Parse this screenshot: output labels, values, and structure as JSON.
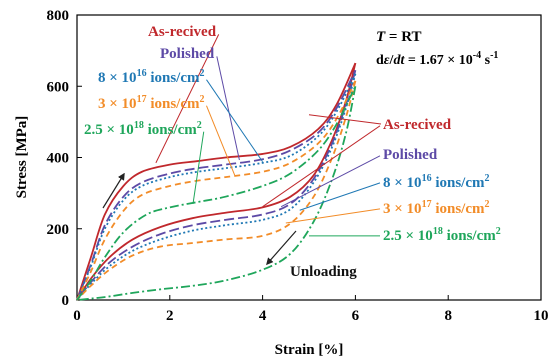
{
  "chart_data": {
    "type": "line",
    "title": "",
    "xlabel": "Strain [%]",
    "ylabel": "Stress [MPa]",
    "xlim": [
      0,
      10
    ],
    "ylim": [
      0,
      800
    ],
    "xticks": [
      "0",
      "2",
      "4",
      "6",
      "8",
      "10"
    ],
    "yticks": [
      "0",
      "200",
      "400",
      "600",
      "800"
    ],
    "grid": false,
    "legend_position": "inline labels with leader lines (left: loading curves, right: unloading curves)",
    "conditions": {
      "temperature_prefix": "T",
      "temperature_value": " = RT",
      "rate_prefix": "d",
      "rate_symbol_e": "ε",
      "rate_slash": "/",
      "rate_symbol_t": "dt",
      "rate_value": " = 1.67 × 10",
      "rate_exp": "-4",
      "rate_unit": " s",
      "rate_unit_exp": "-1"
    },
    "annotations": {
      "unloading": "Unloading"
    },
    "series": [
      {
        "name": "As-recived",
        "color": "#c0282c",
        "dash": "solid",
        "label_parts": [
          "As-recived"
        ],
        "loading": [
          [
            0,
            0
          ],
          [
            0.3,
            120
          ],
          [
            0.6,
            240
          ],
          [
            1.0,
            320
          ],
          [
            1.4,
            360
          ],
          [
            2.0,
            380
          ],
          [
            2.6,
            390
          ],
          [
            3.2,
            400
          ],
          [
            4.0,
            410
          ],
          [
            4.6,
            430
          ],
          [
            5.2,
            480
          ],
          [
            5.6,
            550
          ],
          [
            6.0,
            665
          ]
        ],
        "unloading": [
          [
            6.0,
            665
          ],
          [
            5.8,
            560
          ],
          [
            5.5,
            450
          ],
          [
            5.1,
            350
          ],
          [
            4.6,
            290
          ],
          [
            4.0,
            260
          ],
          [
            3.2,
            245
          ],
          [
            2.5,
            230
          ],
          [
            1.8,
            205
          ],
          [
            1.2,
            170
          ],
          [
            0.7,
            120
          ],
          [
            0.3,
            60
          ],
          [
            0,
            0
          ]
        ]
      },
      {
        "name": "Polished",
        "color": "#5d4aa6",
        "dash": "longdash",
        "label_parts": [
          "Polished"
        ],
        "loading": [
          [
            0,
            0
          ],
          [
            0.3,
            100
          ],
          [
            0.6,
            210
          ],
          [
            1.0,
            290
          ],
          [
            1.4,
            330
          ],
          [
            2.0,
            355
          ],
          [
            2.6,
            370
          ],
          [
            3.2,
            380
          ],
          [
            4.0,
            395
          ],
          [
            4.6,
            420
          ],
          [
            5.2,
            470
          ],
          [
            5.6,
            540
          ],
          [
            6.0,
            645
          ]
        ],
        "unloading": [
          [
            6.0,
            645
          ],
          [
            5.8,
            550
          ],
          [
            5.5,
            440
          ],
          [
            5.1,
            340
          ],
          [
            4.6,
            270
          ],
          [
            4.0,
            240
          ],
          [
            3.2,
            225
          ],
          [
            2.5,
            210
          ],
          [
            1.8,
            185
          ],
          [
            1.2,
            150
          ],
          [
            0.7,
            105
          ],
          [
            0.3,
            50
          ],
          [
            0,
            0
          ]
        ]
      },
      {
        "name": "8 × 10^16 ions/cm^2",
        "color": "#1f78b4",
        "dash": "dot",
        "label_parts": [
          "8 × 10",
          "16",
          " ions/cm",
          "2"
        ],
        "loading": [
          [
            0,
            0
          ],
          [
            0.3,
            95
          ],
          [
            0.6,
            200
          ],
          [
            1.0,
            280
          ],
          [
            1.4,
            320
          ],
          [
            2.0,
            345
          ],
          [
            2.6,
            360
          ],
          [
            3.2,
            370
          ],
          [
            4.0,
            385
          ],
          [
            4.6,
            405
          ],
          [
            5.2,
            460
          ],
          [
            5.6,
            530
          ],
          [
            6.0,
            635
          ]
        ],
        "unloading": [
          [
            6.0,
            635
          ],
          [
            5.8,
            540
          ],
          [
            5.5,
            430
          ],
          [
            5.1,
            330
          ],
          [
            4.6,
            255
          ],
          [
            4.0,
            225
          ],
          [
            3.2,
            210
          ],
          [
            2.5,
            195
          ],
          [
            1.8,
            170
          ],
          [
            1.2,
            138
          ],
          [
            0.7,
            95
          ],
          [
            0.3,
            45
          ],
          [
            0,
            0
          ]
        ]
      },
      {
        "name": "3 × 10^17 ions/cm^2",
        "color": "#f28c28",
        "dash": "dash",
        "label_parts": [
          "3 × 10",
          "17",
          " ions/cm",
          "2"
        ],
        "loading": [
          [
            0,
            0
          ],
          [
            0.3,
            80
          ],
          [
            0.6,
            170
          ],
          [
            1.0,
            250
          ],
          [
            1.4,
            295
          ],
          [
            2.0,
            320
          ],
          [
            2.6,
            335
          ],
          [
            3.2,
            345
          ],
          [
            4.0,
            360
          ],
          [
            4.6,
            385
          ],
          [
            5.2,
            440
          ],
          [
            5.6,
            510
          ],
          [
            6.0,
            615
          ]
        ],
        "unloading": [
          [
            6.0,
            615
          ],
          [
            5.8,
            515
          ],
          [
            5.5,
            400
          ],
          [
            5.1,
            290
          ],
          [
            4.6,
            215
          ],
          [
            4.0,
            180
          ],
          [
            3.2,
            170
          ],
          [
            2.5,
            160
          ],
          [
            1.8,
            150
          ],
          [
            1.2,
            125
          ],
          [
            0.7,
            85
          ],
          [
            0.3,
            40
          ],
          [
            0,
            0
          ]
        ]
      },
      {
        "name": "2.5 × 10^18 ions/cm^2",
        "color": "#1fa65b",
        "dash": "dashdot",
        "label_parts": [
          "2.5 × 10",
          "18",
          " ions/cm",
          "2"
        ],
        "loading": [
          [
            0,
            0
          ],
          [
            0.3,
            55
          ],
          [
            0.6,
            120
          ],
          [
            1.0,
            190
          ],
          [
            1.5,
            240
          ],
          [
            2.0,
            260
          ],
          [
            2.6,
            275
          ],
          [
            3.2,
            290
          ],
          [
            4.0,
            320
          ],
          [
            4.6,
            355
          ],
          [
            5.2,
            420
          ],
          [
            5.6,
            495
          ],
          [
            6.0,
            600
          ]
        ],
        "unloading": [
          [
            6.0,
            600
          ],
          [
            5.8,
            470
          ],
          [
            5.5,
            340
          ],
          [
            5.1,
            220
          ],
          [
            4.6,
            130
          ],
          [
            4.0,
            85
          ],
          [
            3.2,
            55
          ],
          [
            2.5,
            40
          ],
          [
            1.8,
            30
          ],
          [
            1.2,
            20
          ],
          [
            0.7,
            10
          ],
          [
            0.3,
            4
          ],
          [
            0,
            0
          ]
        ]
      }
    ]
  }
}
